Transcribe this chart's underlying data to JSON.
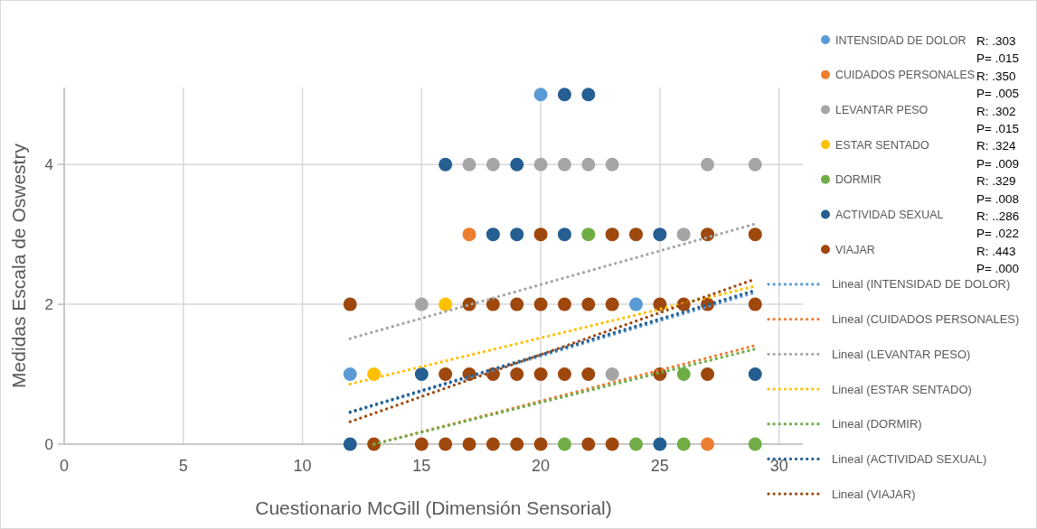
{
  "chart_data": {
    "type": "scatter",
    "xlabel": "Cuestionario McGill (Dimensión Sensorial)",
    "ylabel": "Medidas Escala de Oswestry",
    "xlim": [
      0,
      31
    ],
    "xticks": [
      0,
      5,
      10,
      15,
      20,
      25,
      30
    ],
    "ylim": [
      0,
      5.1
    ],
    "yticks": [
      0,
      2,
      4
    ],
    "grid": true,
    "legend": "right",
    "marker": "circle",
    "series": [
      {
        "name": "INTENSIDAD DE DOLOR",
        "color": "#5b9bd5",
        "x": [
          20,
          24,
          12
        ],
        "values": [
          5,
          2,
          1
        ]
      },
      {
        "name": "CUIDADOS PERSONALES",
        "color": "#ed7d31",
        "x": [
          17,
          27
        ],
        "values": [
          3,
          0
        ]
      },
      {
        "name": "LEVANTAR PESO",
        "color": "#a5a5a5",
        "x": [
          17,
          18,
          20,
          21,
          22,
          23,
          27,
          29,
          26,
          15,
          23
        ],
        "values": [
          4,
          4,
          4,
          4,
          4,
          4,
          4,
          4,
          3,
          2,
          1
        ]
      },
      {
        "name": "ESTAR SENTADO",
        "color": "#ffc000",
        "x": [
          16,
          13
        ],
        "values": [
          2,
          1
        ]
      },
      {
        "name": "DORMIR",
        "color": "#70ad47",
        "x": [
          22,
          26,
          21,
          24,
          26,
          29
        ],
        "values": [
          3,
          1,
          0,
          0,
          0,
          0
        ]
      },
      {
        "name": "ACTIVIDAD SEXUAL",
        "color": "#255e91",
        "x": [
          21,
          22,
          16,
          19,
          18,
          19,
          21,
          25,
          15,
          29,
          12,
          25
        ],
        "values": [
          5,
          5,
          4,
          4,
          3,
          3,
          3,
          3,
          1,
          1,
          0,
          0
        ]
      },
      {
        "name": "VIAJAR",
        "color": "#9e480e",
        "x": [
          20,
          23,
          24,
          27,
          29,
          12,
          17,
          18,
          19,
          20,
          21,
          22,
          23,
          25,
          26,
          27,
          29,
          16,
          17,
          18,
          19,
          20,
          21,
          22,
          25,
          27,
          13,
          15,
          16,
          17,
          18,
          19,
          20,
          22,
          23
        ],
        "values": [
          3,
          3,
          3,
          3,
          3,
          2,
          2,
          2,
          2,
          2,
          2,
          2,
          2,
          2,
          2,
          2,
          2,
          1,
          1,
          1,
          1,
          1,
          1,
          1,
          1,
          1,
          0,
          0,
          0,
          0,
          0,
          0,
          0,
          0,
          0
        ]
      },
      {
        "type": "line",
        "name": "Lineal (INTENSIDAD DE DOLOR)",
        "color": "#5b9bd5",
        "line_style": "dotted",
        "marker": "none",
        "x": [
          12,
          29
        ],
        "values": [
          0.45,
          2.17
        ]
      },
      {
        "type": "line",
        "name": "Lineal (CUIDADOS PERSONALES)",
        "color": "#ed7d31",
        "line_style": "dotted",
        "marker": "none",
        "x": [
          13,
          29
        ],
        "values": [
          0.0,
          1.41
        ]
      },
      {
        "type": "line",
        "name": "Lineal (LEVANTAR PESO)",
        "color": "#a5a5a5",
        "line_style": "dotted",
        "marker": "none",
        "x": [
          12,
          29
        ],
        "values": [
          1.51,
          3.15
        ]
      },
      {
        "type": "line",
        "name": "Lineal (ESTAR SENTADO)",
        "color": "#ffc000",
        "line_style": "dotted",
        "marker": "none",
        "x": [
          12,
          29
        ],
        "values": [
          0.86,
          2.26
        ]
      },
      {
        "type": "line",
        "name": "Lineal (DORMIR)",
        "color": "#70ad47",
        "line_style": "dotted",
        "marker": "none",
        "x": [
          13,
          29
        ],
        "values": [
          0.0,
          1.36
        ]
      },
      {
        "type": "line",
        "name": "Lineal (ACTIVIDAD SEXUAL)",
        "color": "#255e91",
        "line_style": "dotted",
        "marker": "none",
        "x": [
          12,
          29
        ],
        "values": [
          0.46,
          2.2
        ]
      },
      {
        "type": "line",
        "name": "Lineal (VIAJAR)",
        "color": "#9e480e",
        "line_style": "dotted",
        "marker": "none",
        "x": [
          12,
          29
        ],
        "values": [
          0.32,
          2.36
        ]
      }
    ],
    "annotations": [
      "R: .303",
      "P= .015",
      "R: .350",
      "P= .005",
      "R: .302",
      "P= .015",
      "R: .324",
      "P= .009",
      "R: .329",
      "P= .008",
      "R: ..286",
      "P= .022",
      "R: .443",
      "P= .000"
    ]
  }
}
